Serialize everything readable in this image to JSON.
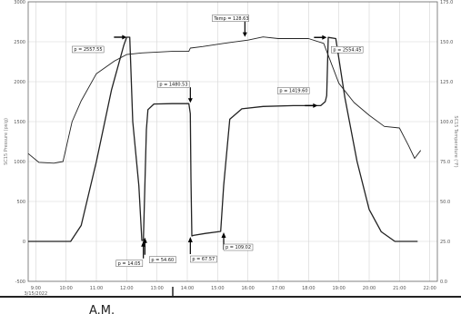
{
  "chart_data": {
    "type": "line",
    "left_axis": {
      "label": "SC15 Pressure (psig)",
      "ticks": [
        "3000",
        "2500",
        "2000",
        "1500",
        "1000",
        "500",
        "0",
        "-500"
      ],
      "ylim": [
        -500,
        3000
      ]
    },
    "right_axis": {
      "label": "SC15 Temperature (°F)",
      "ticks": [
        "175.0",
        "150.0",
        "125.0",
        "100.0",
        "75.0",
        "50.0",
        "25.0",
        "0.0"
      ],
      "ylim": [
        0,
        175
      ]
    },
    "x_ticks": [
      "9:00",
      "10:00",
      "11:00",
      "12:00",
      "13:00",
      "14:00",
      "15:00",
      "16:00",
      "17:00",
      "18:00",
      "19:00",
      "20:00",
      "21:00",
      "22:00"
    ],
    "x_date": "3/15/2022",
    "xlim": [
      8.75,
      22.25
    ],
    "grid": true,
    "series": [
      {
        "role": "pressure",
        "x": [
          8.75,
          10.15,
          10.5,
          11.0,
          11.5,
          11.9,
          12.0,
          12.05,
          12.1,
          12.2,
          12.4,
          12.5,
          12.55,
          12.65,
          12.7,
          12.9,
          13.5,
          14.05,
          14.1,
          14.12,
          14.15,
          14.2,
          14.6,
          15.1,
          15.2,
          15.4,
          15.8,
          16.5,
          17.5,
          18.4,
          18.55,
          18.6,
          18.65,
          18.9,
          19.2,
          19.6,
          20.0,
          20.4,
          20.85,
          21.0,
          21.6
        ],
        "y": [
          0,
          0,
          200,
          1000,
          1900,
          2450,
          2557,
          2557,
          2557,
          1500,
          700,
          14,
          14,
          1400,
          1650,
          1720,
          1725,
          1725,
          1600,
          800,
          68,
          75,
          100,
          125,
          700,
          1530,
          1660,
          1690,
          1700,
          1700,
          1750,
          1825,
          2554,
          2540,
          1800,
          1000,
          400,
          120,
          0,
          0,
          0
        ]
      },
      {
        "role": "temperature",
        "x": [
          8.75,
          9.1,
          9.6,
          9.9,
          10.2,
          10.5,
          11.0,
          11.6,
          12.0,
          12.5,
          13.0,
          13.5,
          14.05,
          14.1,
          14.5,
          15.2,
          16.0,
          16.5,
          17.0,
          17.5,
          18.0,
          18.5,
          19.0,
          19.5,
          20.0,
          20.5,
          21.0,
          21.3,
          21.5,
          21.7
        ],
        "y": [
          80,
          74.5,
          74,
          75,
          100,
          113,
          130,
          138,
          142,
          143,
          143.5,
          144,
          144,
          146,
          147,
          149,
          151,
          153,
          152,
          152,
          152,
          149,
          124,
          112,
          104,
          97,
          96,
          85,
          77,
          82
        ]
      }
    ],
    "annotations": [
      {
        "text": "p = 2557.55",
        "x": 12.0,
        "y": 2557
      },
      {
        "text": "Temp = 128.63",
        "x": 15.9,
        "y": 2550
      },
      {
        "text": "p = 2554.45",
        "x": 18.6,
        "y": 2554
      },
      {
        "text": "p = 1480.53",
        "x": 14.1,
        "y": 1725
      },
      {
        "text": "p = 1419.60",
        "x": 18.3,
        "y": 1700
      },
      {
        "text": "p = 14.05",
        "x": 12.55,
        "y": 14
      },
      {
        "text": "p = 54.60",
        "x": 12.6,
        "y": 60
      },
      {
        "text": "p = 67.57",
        "x": 14.1,
        "y": 68
      },
      {
        "text": "p = 109.02",
        "x": 15.2,
        "y": 125
      }
    ]
  },
  "footer": {
    "label": "A.M."
  }
}
